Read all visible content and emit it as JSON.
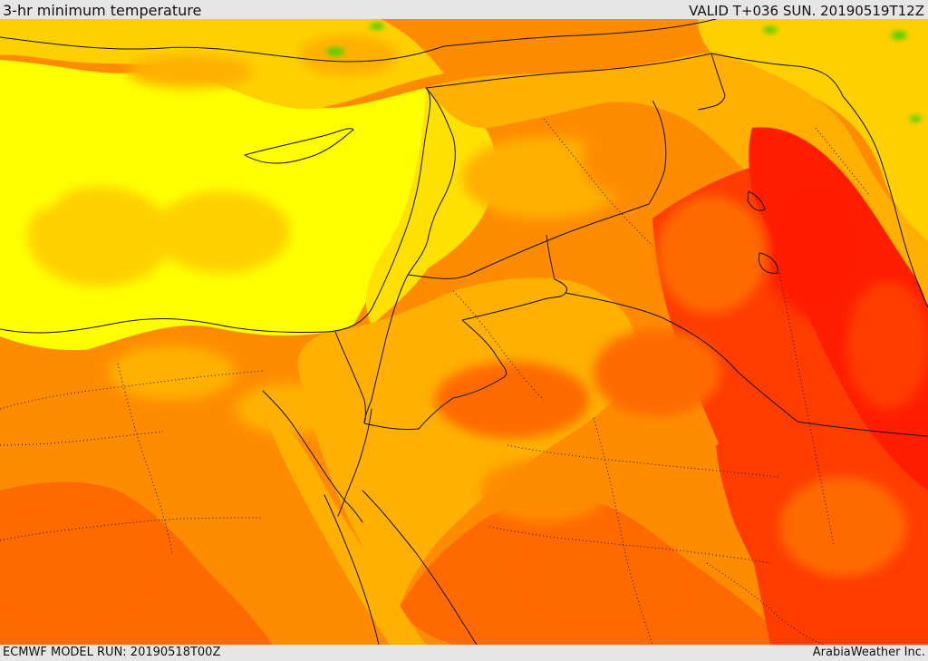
{
  "header": {
    "title": "3-hr minimum temperature",
    "valid": "VALID T+036 SUN. 20190519T12Z"
  },
  "footer": {
    "model_run": "ECMWF MODEL RUN: 20190518T00Z",
    "provider": "ArabiaWeather Inc."
  },
  "map": {
    "colors": {
      "sea_yellow": "#ffff00",
      "light_yellow": "#ffe100",
      "pale_yellow": "#ffd000",
      "orange_light": "#ffb000",
      "orange": "#ff8c00",
      "deep_orange": "#ff6a00",
      "red_orange": "#ff3c00",
      "red": "#ff1f00",
      "green_spot": "#58d000",
      "border": "#111111"
    }
  }
}
